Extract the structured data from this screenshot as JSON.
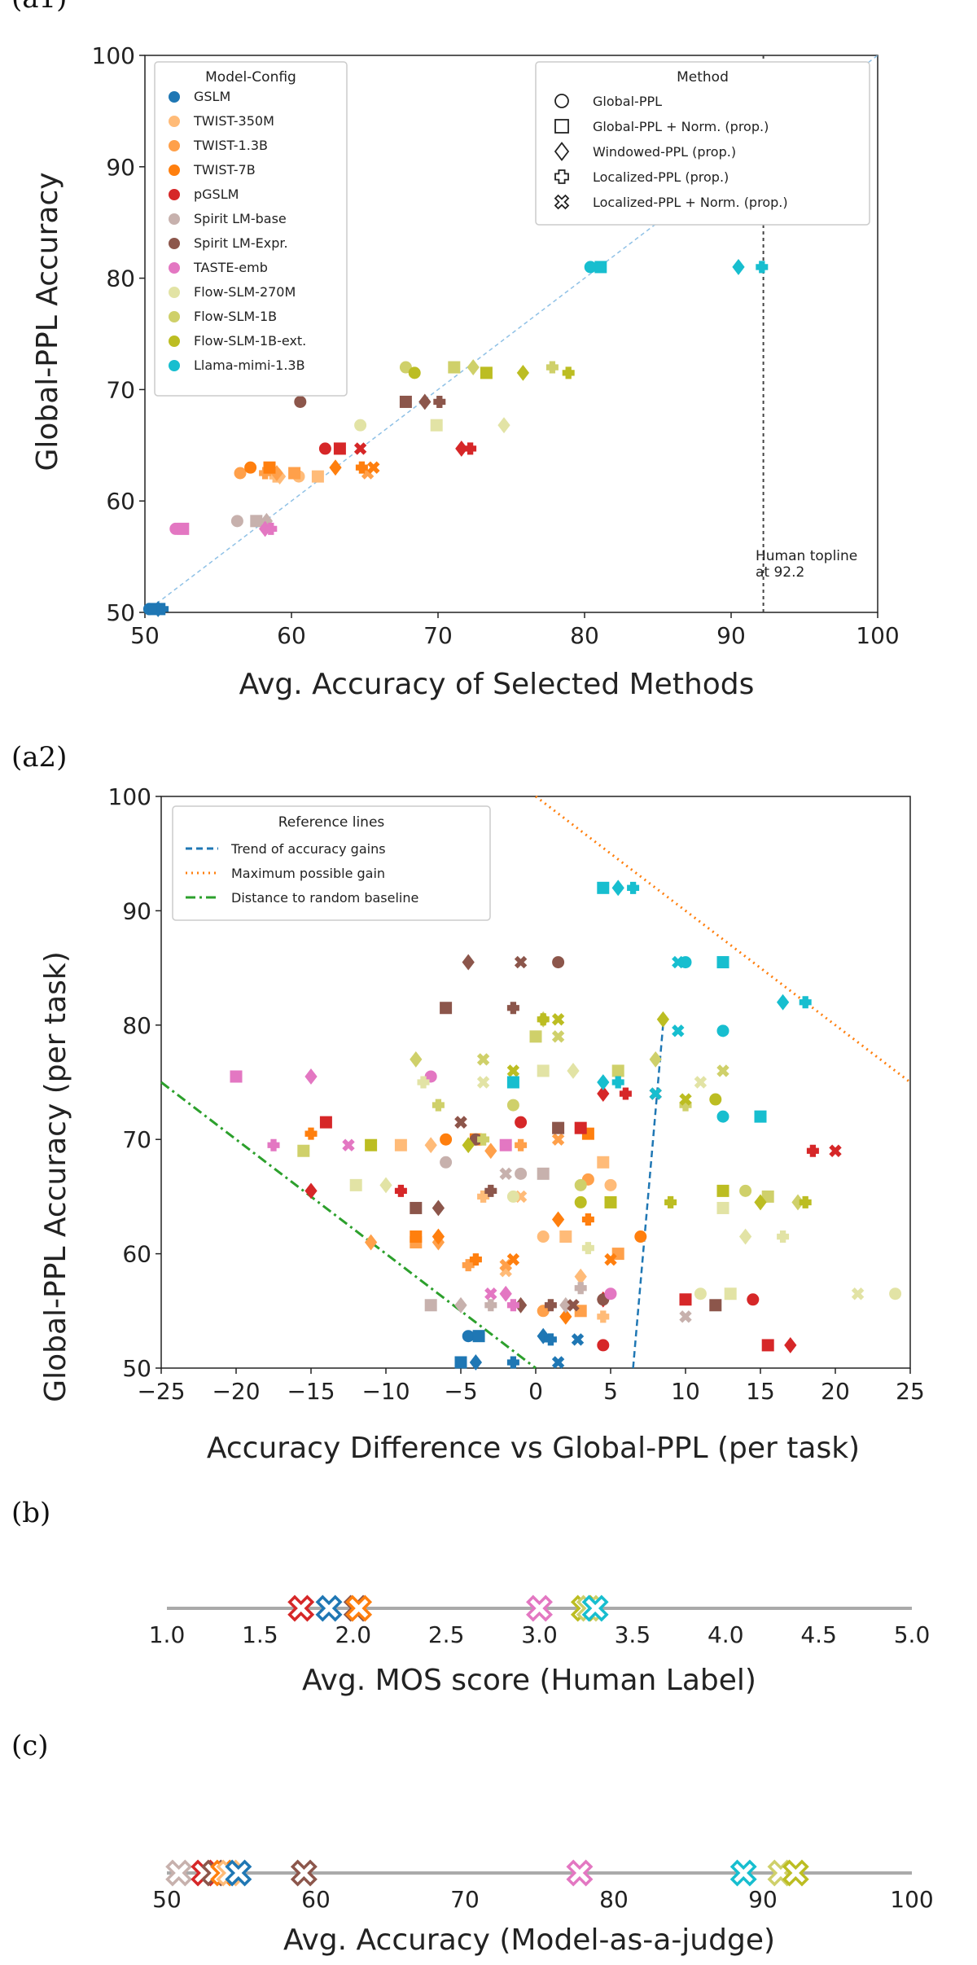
{
  "panels": {
    "a1": "(a1)",
    "a2": "(a2)",
    "b": "(b)",
    "c": "(c)"
  },
  "colors": {
    "GSLM": "#1f77b4",
    "TWIST-350M": "#ffbb78",
    "TWIST-1.3B": "#ffa04a",
    "TWIST-7B": "#ff7f0e",
    "pGSLM": "#d62728",
    "Spirit LM-base": "#c7b1ad",
    "Spirit LM-Expr.": "#8c564b",
    "TASTE-emb": "#e377c2",
    "Flow-SLM-270M": "#e2e3a5",
    "Flow-SLM-1B": "#cfd06a",
    "Flow-SLM-1B-ext.": "#bcbd22",
    "Llama-mimi-1.3B": "#17becf"
  },
  "chart_data": [
    {
      "id": "a1",
      "type": "scatter",
      "xlabel": "Avg. Accuracy of Selected Methods",
      "ylabel": "Global-PPL Accuracy",
      "xlim": [
        50,
        100
      ],
      "ylim": [
        50,
        100
      ],
      "xticks": [
        "50",
        "60",
        "70",
        "80",
        "90",
        "100"
      ],
      "yticks": [
        "50",
        "60",
        "70",
        "80",
        "90",
        "100"
      ],
      "grid": false,
      "legend_placement": "top-left",
      "legend_title": "Model-Config",
      "models": [
        "GSLM",
        "TWIST-350M",
        "TWIST-1.3B",
        "TWIST-7B",
        "pGSLM",
        "Spirit LM-base",
        "Spirit LM-Expr.",
        "TASTE-emb",
        "Flow-SLM-270M",
        "Flow-SLM-1B",
        "Flow-SLM-1B-ext.",
        "Llama-mimi-1.3B"
      ],
      "method_legend_title": "Method",
      "method_legend_placement": "top-right",
      "methods": [
        {
          "name": "Global-PPL",
          "marker": "circle"
        },
        {
          "name": "Global-PPL + Norm. (prop.)",
          "marker": "square"
        },
        {
          "name": "Windowed-PPL (prop.)",
          "marker": "diamond"
        },
        {
          "name": "Localized-PPL (prop.)",
          "marker": "plus"
        },
        {
          "name": "Localized-PPL + Norm. (prop.)",
          "marker": "x"
        }
      ],
      "annotation": [
        "Human topline",
        "at 92.2"
      ],
      "topline_x": 92.2,
      "points": [
        {
          "m": "GSLM",
          "y": 50.3,
          "xs": [
            50.3,
            50.6,
            50.9,
            51.2
          ]
        },
        {
          "m": "TWIST-350M",
          "y": 62.2,
          "xs": [
            60.5,
            61.8,
            59.2,
            58.9
          ]
        },
        {
          "m": "TWIST-1.3B",
          "y": 62.5,
          "xs": [
            56.5,
            60.2,
            59.0,
            58.2,
            65.2
          ]
        },
        {
          "m": "TWIST-7B",
          "y": 63.0,
          "xs": [
            57.2,
            58.5,
            63.0,
            64.8,
            65.6
          ]
        },
        {
          "m": "pGSLM",
          "y": 64.7,
          "xs": [
            62.3,
            63.3,
            71.6,
            72.2,
            64.7
          ]
        },
        {
          "m": "Spirit LM-base",
          "y": 58.2,
          "xs": [
            56.3,
            57.6,
            58.3
          ]
        },
        {
          "m": "Spirit LM-Expr.",
          "y": 68.9,
          "xs": [
            60.6,
            67.8,
            69.1,
            70.1
          ]
        },
        {
          "m": "TASTE-emb",
          "y": 57.5,
          "xs": [
            52.1,
            52.6,
            58.2,
            58.6
          ]
        },
        {
          "m": "Flow-SLM-270M",
          "y": 66.8,
          "xs": [
            64.7,
            69.9,
            74.5
          ]
        },
        {
          "m": "Flow-SLM-1B",
          "y": 72.0,
          "xs": [
            67.8,
            71.1,
            72.4,
            77.8
          ]
        },
        {
          "m": "Flow-SLM-1B-ext.",
          "y": 71.5,
          "xs": [
            68.4,
            73.3,
            75.8,
            78.9
          ]
        },
        {
          "m": "Llama-mimi-1.3B",
          "y": 81.0,
          "xs": [
            80.4,
            81.1,
            90.5,
            92.1
          ]
        }
      ]
    },
    {
      "id": "a2",
      "type": "scatter",
      "xlabel": "Accuracy Difference vs Global-PPL (per task)",
      "ylabel": "Global-PPL Accuracy (per task)",
      "xlim": [
        -25,
        25
      ],
      "ylim": [
        50,
        100
      ],
      "xticks": [
        "−25",
        "−20",
        "−15",
        "−10",
        "−5",
        "0",
        "5",
        "10",
        "15",
        "20",
        "25"
      ],
      "yticks": [
        "50",
        "60",
        "70",
        "80",
        "90",
        "100"
      ],
      "grid": false,
      "legend_placement": "top-left",
      "legend_title": "Reference lines",
      "reference_lines": [
        {
          "name": "Trend of accuracy gains",
          "style": "dashed",
          "color": "#1f77b4"
        },
        {
          "name": "Maximum possible gain",
          "style": "dotted",
          "color": "#ff7f0e"
        },
        {
          "name": "Distance to random baseline",
          "style": "dashdot",
          "color": "#2ca02c"
        }
      ],
      "points": [
        {
          "m": "GSLM",
          "pts": [
            [
              -5,
              50.5
            ],
            [
              -4,
              50.5
            ],
            [
              -1.5,
              50.5
            ],
            [
              1.5,
              50.5
            ],
            [
              -4.5,
              52.8
            ],
            [
              -3.8,
              52.8
            ],
            [
              0.5,
              52.8
            ],
            [
              1,
              52.5
            ],
            [
              2.8,
              52.5
            ]
          ]
        },
        {
          "m": "TWIST-350M",
          "pts": [
            [
              -9,
              69.5
            ],
            [
              -7,
              69.5
            ],
            [
              -3.5,
              65
            ],
            [
              -1,
              65
            ],
            [
              0.5,
              61.5
            ],
            [
              2,
              61.5
            ],
            [
              3,
              58
            ],
            [
              4.5,
              54.5
            ],
            [
              -2,
              58.5
            ],
            [
              5,
              66
            ],
            [
              4.5,
              68
            ]
          ]
        },
        {
          "m": "TWIST-1.3B",
          "pts": [
            [
              -8,
              61
            ],
            [
              -6.5,
              61
            ],
            [
              -4.5,
              59
            ],
            [
              -2,
              59
            ],
            [
              0.5,
              55
            ],
            [
              3,
              55
            ],
            [
              -3,
              69
            ],
            [
              -1,
              69.5
            ],
            [
              1.5,
              70
            ],
            [
              3.5,
              66.5
            ],
            [
              5.5,
              60
            ],
            [
              -11,
              61
            ]
          ]
        },
        {
          "m": "TWIST-7B",
          "pts": [
            [
              -8,
              61.5
            ],
            [
              -6.5,
              61.5
            ],
            [
              -4,
              59.5
            ],
            [
              -1.5,
              59.5
            ],
            [
              -6,
              70
            ],
            [
              -4,
              70
            ],
            [
              1.5,
              63
            ],
            [
              3.5,
              63
            ],
            [
              5,
              59.5
            ],
            [
              7,
              61.5
            ],
            [
              3.5,
              70.5
            ],
            [
              2,
              54.5
            ],
            [
              -15,
              70.5
            ]
          ]
        },
        {
          "m": "pGSLM",
          "pts": [
            [
              -14,
              71.5
            ],
            [
              -15,
              65.5
            ],
            [
              -9,
              65.5
            ],
            [
              -5,
              71.5
            ],
            [
              -1,
              71.5
            ],
            [
              3,
              71
            ],
            [
              4.5,
              74
            ],
            [
              6,
              74
            ],
            [
              8,
              74
            ],
            [
              4.5,
              52
            ],
            [
              15.5,
              52
            ],
            [
              17,
              52
            ],
            [
              18.5,
              69
            ],
            [
              20,
              69
            ],
            [
              14.5,
              56
            ],
            [
              10,
              56
            ],
            [
              4.5,
              56
            ]
          ]
        },
        {
          "m": "Spirit LM-base",
          "pts": [
            [
              -7,
              55.5
            ],
            [
              -5,
              55.5
            ],
            [
              -3,
              55.5
            ],
            [
              -2,
              67
            ],
            [
              -1,
              67
            ],
            [
              0.5,
              67
            ],
            [
              2,
              55.5
            ],
            [
              3,
              57
            ],
            [
              10,
              54.5
            ],
            [
              -6,
              68
            ]
          ]
        },
        {
          "m": "Spirit LM-Expr.",
          "pts": [
            [
              -6,
              81.5
            ],
            [
              -4.5,
              85.5
            ],
            [
              -1.5,
              81.5
            ],
            [
              -1,
              85.5
            ],
            [
              1.5,
              85.5
            ],
            [
              -8,
              64
            ],
            [
              -6.5,
              64
            ],
            [
              -3,
              65.5
            ],
            [
              -5,
              71.5
            ],
            [
              -4,
              70
            ],
            [
              1.5,
              71
            ],
            [
              -1,
              55.5
            ],
            [
              1,
              55.5
            ],
            [
              2.5,
              55.5
            ],
            [
              4.5,
              56
            ],
            [
              12,
              55.5
            ]
          ]
        },
        {
          "m": "TASTE-emb",
          "pts": [
            [
              -20,
              75.5
            ],
            [
              -15,
              75.5
            ],
            [
              -17.5,
              69.5
            ],
            [
              -12.5,
              69.5
            ],
            [
              -7,
              75.5
            ],
            [
              -2,
              69.5
            ],
            [
              -2,
              56.5
            ],
            [
              -1.5,
              55.5
            ],
            [
              -3,
              56.5
            ],
            [
              5,
              56.5
            ]
          ]
        },
        {
          "m": "Flow-SLM-270M",
          "pts": [
            [
              -12,
              66
            ],
            [
              -10,
              66
            ],
            [
              -7.5,
              75
            ],
            [
              -3.5,
              75
            ],
            [
              -1.5,
              65
            ],
            [
              0.5,
              76
            ],
            [
              2.5,
              76
            ],
            [
              3.5,
              60.5
            ],
            [
              11,
              75
            ],
            [
              11,
              56.5
            ],
            [
              13,
              56.5
            ],
            [
              14,
              61.5
            ],
            [
              16.5,
              61.5
            ],
            [
              21.5,
              56.5
            ],
            [
              24,
              56.5
            ],
            [
              12.5,
              64
            ]
          ]
        },
        {
          "m": "Flow-SLM-1B",
          "pts": [
            [
              -15.5,
              69
            ],
            [
              -8,
              77
            ],
            [
              -6.5,
              73
            ],
            [
              -3.5,
              77
            ],
            [
              -1.5,
              73
            ],
            [
              0,
              79
            ],
            [
              0.5,
              80.5
            ],
            [
              -3.5,
              70
            ],
            [
              1.5,
              79
            ],
            [
              3,
              66
            ],
            [
              5.5,
              76
            ],
            [
              8,
              77
            ],
            [
              10,
              73
            ],
            [
              12.5,
              76
            ],
            [
              14,
              65.5
            ],
            [
              15.5,
              65
            ],
            [
              17.5,
              64.5
            ]
          ]
        },
        {
          "m": "Flow-SLM-1B-ext.",
          "pts": [
            [
              -11,
              69.5
            ],
            [
              -4.5,
              69.5
            ],
            [
              0.5,
              80.5
            ],
            [
              1.5,
              80.5
            ],
            [
              3,
              64.5
            ],
            [
              5,
              64.5
            ],
            [
              8.5,
              80.5
            ],
            [
              9,
              64.5
            ],
            [
              10,
              73.5
            ],
            [
              12,
              73.5
            ],
            [
              12.5,
              65.5
            ],
            [
              15,
              64.5
            ],
            [
              18,
              64.5
            ],
            [
              -1.5,
              76
            ]
          ]
        },
        {
          "m": "Llama-mimi-1.3B",
          "pts": [
            [
              4.5,
              92
            ],
            [
              5.5,
              92
            ],
            [
              6.5,
              92
            ],
            [
              9.5,
              85.5
            ],
            [
              10,
              85.5
            ],
            [
              12.5,
              85.5
            ],
            [
              16.5,
              82
            ],
            [
              18,
              82
            ],
            [
              9.5,
              79.5
            ],
            [
              12.5,
              79.5
            ],
            [
              -1.5,
              75
            ],
            [
              4.5,
              75
            ],
            [
              5.5,
              75
            ],
            [
              8,
              74
            ],
            [
              12.5,
              72
            ],
            [
              15,
              72
            ]
          ]
        }
      ]
    },
    {
      "id": "b",
      "type": "scatter",
      "xlabel": "Avg. MOS score (Human Label)",
      "xlim": [
        1.0,
        5.0
      ],
      "xticks": [
        "1.0",
        "1.5",
        "2.0",
        "2.5",
        "3.0",
        "3.5",
        "4.0",
        "4.5",
        "5.0"
      ],
      "points": [
        {
          "m": "pGSLM",
          "x": 1.72
        },
        {
          "m": "GSLM",
          "x": 1.87
        },
        {
          "m": "Spirit LM-Expr.",
          "x": 2.02
        },
        {
          "m": "TWIST-7B",
          "x": 2.03
        },
        {
          "m": "TASTE-emb",
          "x": 3.0
        },
        {
          "m": "Flow-SLM-1B-ext.",
          "x": 3.24
        },
        {
          "m": "Flow-SLM-1B",
          "x": 3.27
        },
        {
          "m": "Llama-mimi-1.3B",
          "x": 3.3
        }
      ]
    },
    {
      "id": "c",
      "type": "scatter",
      "xlabel": "Avg. Accuracy (Model-as-a-judge)",
      "xlim": [
        50,
        100
      ],
      "xticks": [
        "50",
        "60",
        "70",
        "80",
        "90",
        "100"
      ],
      "points": [
        {
          "m": "Spirit LM-base",
          "x": 50.8
        },
        {
          "m": "pGSLM",
          "x": 52.5
        },
        {
          "m": "Spirit LM-Expr.",
          "x": 53.2
        },
        {
          "m": "TWIST-7B",
          "x": 53.8
        },
        {
          "m": "TWIST-350M",
          "x": 54.2
        },
        {
          "m": "GSLM",
          "x": 54.8
        },
        {
          "m": "Spirit LM-Expr.",
          "x": 59.2
        },
        {
          "m": "TASTE-emb",
          "x": 77.7
        },
        {
          "m": "Llama-mimi-1.3B",
          "x": 88.7
        },
        {
          "m": "Flow-SLM-1B",
          "x": 91.2
        },
        {
          "m": "Flow-SLM-1B-ext.",
          "x": 92.2
        }
      ]
    }
  ]
}
